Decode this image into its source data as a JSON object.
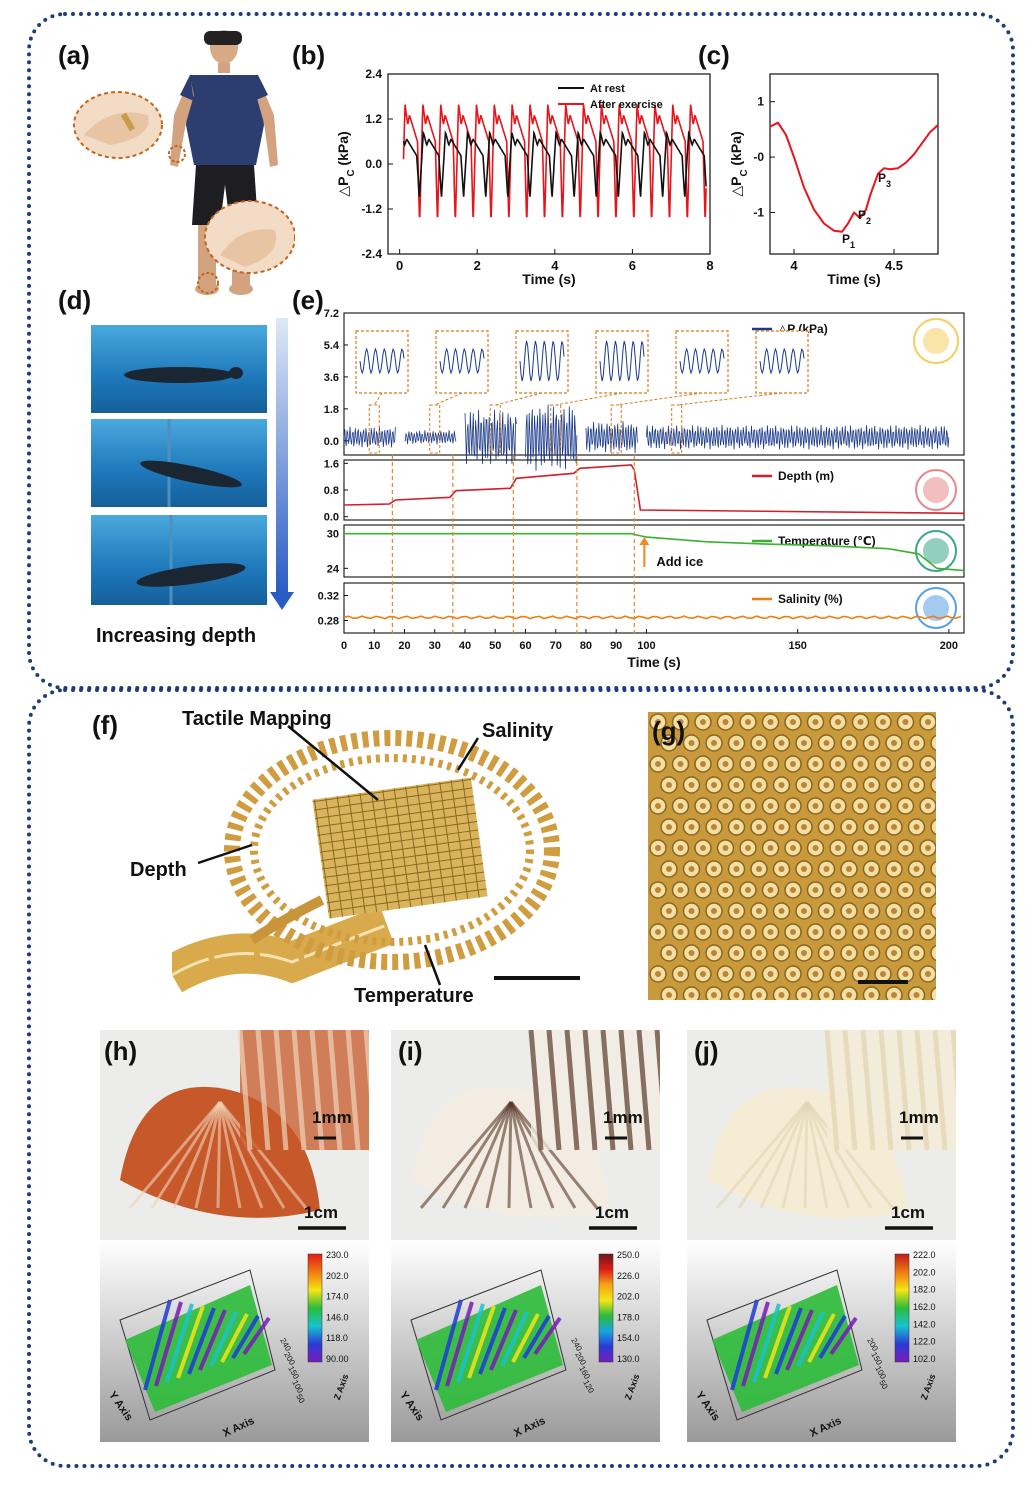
{
  "panel_labels": {
    "a": "(a)",
    "b": "(b)",
    "c": "(c)",
    "d": "(d)",
    "e": "(e)",
    "f": "(f)",
    "g": "(g)",
    "h": "(h)",
    "i": "(i)",
    "j": "(j)"
  },
  "panel_d": {
    "caption": "Increasing depth"
  },
  "panel_f": {
    "labels": {
      "tactile": "Tactile Mapping",
      "salinity": "Salinity",
      "depth": "Depth",
      "temperature": "Temperature"
    }
  },
  "shells": [
    {
      "inset_scale": "1mm",
      "scale": "1cm",
      "colorbar": [
        "230.0",
        "202.0",
        "174.0",
        "146.0",
        "118.0",
        "90.00"
      ],
      "z_ticks": [
        "240",
        "200",
        "150",
        "100",
        "50"
      ],
      "x_axis": "X Axis",
      "y_axis": "Y Axis",
      "z_axis": "Z Axis"
    },
    {
      "inset_scale": "1mm",
      "scale": "1cm",
      "colorbar": [
        "250.0",
        "226.0",
        "202.0",
        "178.0",
        "154.0",
        "130.0"
      ],
      "z_ticks": [
        "240",
        "200",
        "160",
        "120"
      ],
      "x_axis": "X Axis",
      "y_axis": "Y Axis",
      "z_axis": "Z Axis"
    },
    {
      "inset_scale": "1mm",
      "scale": "1cm",
      "colorbar": [
        "222.0",
        "202.0",
        "182.0",
        "162.0",
        "142.0",
        "122.0",
        "102.0"
      ],
      "z_ticks": [
        "200",
        "150",
        "100",
        "50"
      ],
      "x_axis": "X Axis",
      "y_axis": "Y Axis",
      "z_axis": "Z Axis"
    }
  ],
  "chart_data": [
    {
      "id": "b",
      "type": "line",
      "xlabel": "Time (s)",
      "ylabel": "△P",
      "ylabel_sub": "C",
      "ylabel_unit": " (kPa)",
      "xlim": [
        -0.3,
        8
      ],
      "ylim": [
        -2.4,
        2.4
      ],
      "xticks": [
        0,
        2,
        4,
        6,
        8
      ],
      "yticks": [
        2.4,
        1.2,
        0.0,
        -1.2,
        -2.4
      ],
      "ytick_labels": [
        "2.4",
        "1.2",
        "0.0",
        "-1.2",
        "-2.4"
      ],
      "legend_position": "top-right",
      "series": [
        {
          "name": "At rest",
          "color": "#111111",
          "period": 0.57,
          "baseline": 0.22,
          "peak": 0.85,
          "trough": -0.9
        },
        {
          "name": "After exercise",
          "color": "#e8141b",
          "period": 0.46,
          "baseline": 0.6,
          "peak": 1.6,
          "trough": -1.6
        }
      ]
    },
    {
      "id": "c",
      "type": "line",
      "xlabel": "Time (s)",
      "ylabel": "△P",
      "ylabel_sub": "C",
      "ylabel_unit": " (kPa)",
      "xlim": [
        3.88,
        4.72
      ],
      "ylim": [
        -1.75,
        1.5
      ],
      "xticks": [
        4.0,
        4.5
      ],
      "xtick_labels": [
        "4",
        "4.5"
      ],
      "yticks": [
        1,
        0,
        -1
      ],
      "ytick_labels": [
        "1",
        "-0",
        "-1"
      ],
      "series": [
        {
          "name": "",
          "color": "#e8141b",
          "x": [
            3.88,
            3.92,
            3.96,
            4.0,
            4.05,
            4.1,
            4.15,
            4.2,
            4.24,
            4.27,
            4.3,
            4.33,
            4.36,
            4.38,
            4.42,
            4.45,
            4.48,
            4.52,
            4.56,
            4.6,
            4.64,
            4.68,
            4.72
          ],
          "y": [
            0.55,
            0.62,
            0.4,
            0.0,
            -0.55,
            -0.95,
            -1.2,
            -1.33,
            -1.35,
            -1.2,
            -1.0,
            -1.1,
            -0.95,
            -0.7,
            -0.3,
            -0.2,
            -0.22,
            -0.2,
            -0.1,
            0.05,
            0.25,
            0.45,
            0.58
          ]
        }
      ],
      "annotations": [
        {
          "text": "P",
          "sub": "1",
          "x": 4.24,
          "y": -1.55
        },
        {
          "text": "P",
          "sub": "2",
          "x": 4.32,
          "y": -1.12
        },
        {
          "text": "P",
          "sub": "3",
          "x": 4.42,
          "y": -0.45
        }
      ]
    },
    {
      "id": "e",
      "type": "line",
      "xlabel": "Time (s)",
      "xlim": [
        0,
        205
      ],
      "xticks": [
        0,
        10,
        20,
        30,
        40,
        50,
        60,
        70,
        80,
        90,
        100,
        150,
        200
      ],
      "markers_x": [
        16,
        36,
        56,
        77,
        96
      ],
      "annotation": "Add ice",
      "subplots": [
        {
          "name": "△P (kPa)",
          "color": "#1b3a8c",
          "ylim": [
            -0.8,
            7.2
          ],
          "yticks": [
            7.2,
            5.4,
            3.6,
            1.8,
            0.0
          ],
          "ytick_labels": [
            "7.2",
            "5.4",
            "3.6",
            "1.8",
            "0.0"
          ]
        },
        {
          "name": "Depth (m)",
          "color": "#d21f2a",
          "ylim": [
            -0.1,
            1.7
          ],
          "yticks": [
            1.6,
            0.8,
            0.0
          ],
          "ytick_labels": [
            "1.6",
            "0.8",
            "0.0"
          ],
          "x": [
            0,
            15,
            17,
            35,
            37,
            55,
            57,
            76,
            78,
            95,
            96,
            98,
            205
          ],
          "y": [
            0.35,
            0.38,
            0.5,
            0.58,
            0.78,
            0.85,
            1.15,
            1.3,
            1.45,
            1.55,
            1.4,
            0.2,
            0.1
          ]
        },
        {
          "name": "Temperature (℃)",
          "color": "#3cb034",
          "ylim": [
            22.5,
            31.5
          ],
          "yticks": [
            30,
            24
          ],
          "ytick_labels": [
            "30",
            "24"
          ],
          "x": [
            0,
            95,
            100,
            120,
            140,
            160,
            180,
            190,
            196,
            205
          ],
          "y": [
            30.0,
            30.0,
            29.4,
            28.6,
            28.2,
            27.9,
            27.4,
            26.5,
            24.0,
            23.6
          ]
        },
        {
          "name": "Salinity (%)",
          "color": "#f07d14",
          "ylim": [
            0.26,
            0.34
          ],
          "yticks": [
            0.32,
            0.28
          ],
          "ytick_labels": [
            "0.32",
            "0.28"
          ],
          "value": 0.285
        }
      ]
    }
  ]
}
